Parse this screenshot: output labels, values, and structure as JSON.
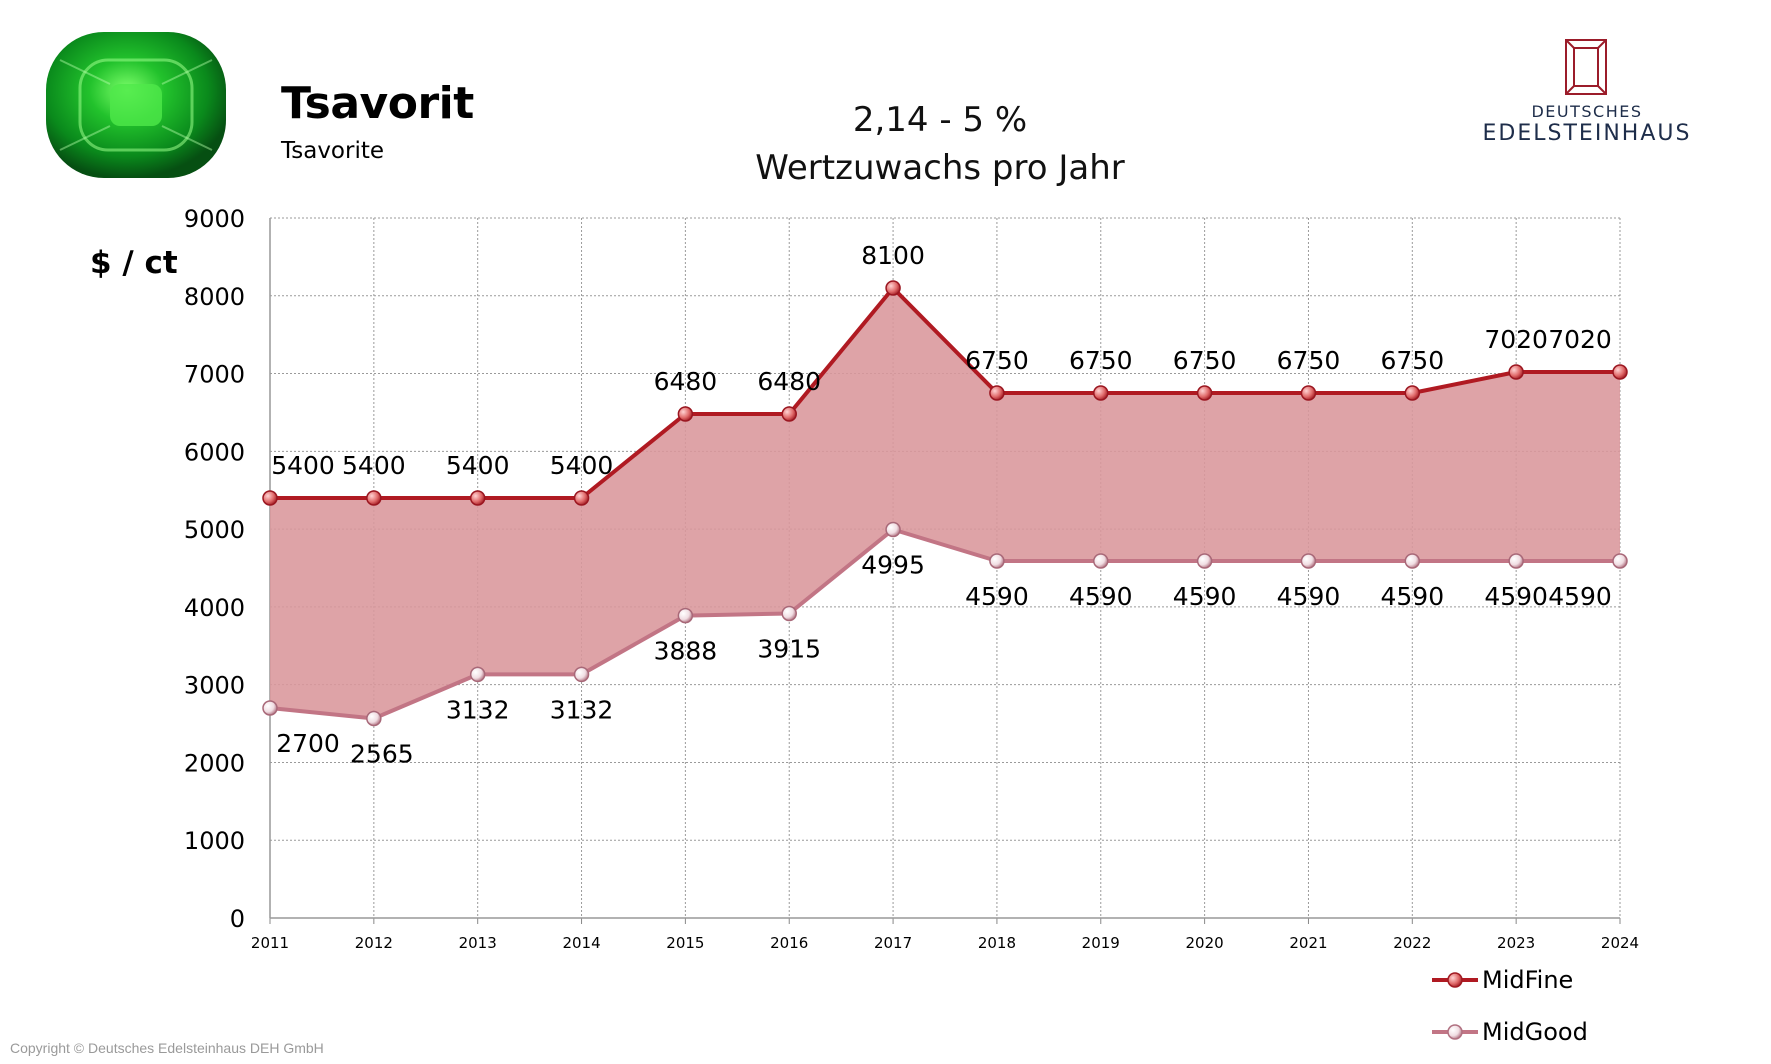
{
  "header": {
    "title": "Tsavorit",
    "subtitle": "Tsavorite",
    "growth_line1": "2,14 - 5 %",
    "growth_line2": "Wertzuwachs pro Jahr"
  },
  "logo": {
    "top": "DEUTSCHES",
    "main": "EDELSTEINHAUS",
    "color": "#1e2d4a",
    "icon": "gem-outline-icon"
  },
  "copyright": "Copyright © Deutsches Edelsteinhaus DEH GmbH",
  "colors": {
    "midfine": "#b01a22",
    "midgood": "#c27585",
    "band_fill": "#d9969b",
    "grid": "#9a9a9a"
  },
  "chart_data": {
    "type": "area",
    "ylabel": "$ / ct",
    "ylim": [
      0,
      9000
    ],
    "yticks": [
      0,
      1000,
      2000,
      3000,
      4000,
      5000,
      6000,
      7000,
      8000,
      9000
    ],
    "grid": true,
    "legend_position": "bottom-right",
    "categories": [
      "2011",
      "2012",
      "2013",
      "2014",
      "2015",
      "2016",
      "2017",
      "2018",
      "2019",
      "2020",
      "2021",
      "2022",
      "2023",
      "2024"
    ],
    "series": [
      {
        "name": "MidFine",
        "values": [
          5400,
          5400,
          5400,
          5400,
          6480,
          6480,
          8100,
          6750,
          6750,
          6750,
          6750,
          6750,
          7020,
          7020
        ]
      },
      {
        "name": "MidGood",
        "values": [
          2700,
          2565,
          3132,
          3132,
          3888,
          3915,
          4995,
          4590,
          4590,
          4590,
          4590,
          4590,
          4590,
          4590
        ]
      }
    ]
  }
}
